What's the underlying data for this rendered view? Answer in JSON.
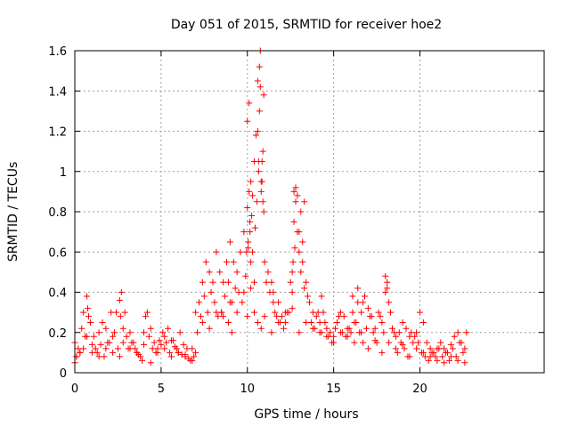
{
  "chart_data": {
    "type": "scatter",
    "title": "Day 051 of 2015, SRMTID for receiver hoe2",
    "xlabel": "GPS time / hours",
    "ylabel": "SRMTID / TECUs",
    "xlim": [
      0,
      27.2
    ],
    "ylim": [
      0,
      1.6
    ],
    "xticks": [
      0,
      5,
      10,
      15,
      20
    ],
    "xtick_labels": [
      "0",
      "5",
      "10",
      "15",
      "20"
    ],
    "yticks": [
      0,
      0.2,
      0.4,
      0.6,
      0.8,
      1,
      1.2,
      1.4,
      1.6
    ],
    "ytick_labels": [
      "0",
      "0.2",
      "0.4",
      "0.6",
      "0.8",
      "1",
      "1.2",
      "1.4",
      "1.6"
    ],
    "grid": true,
    "marker": "plus",
    "color": "#ff0000",
    "series": [
      {
        "name": "SRMTID",
        "x": [
          0.0,
          0.2,
          0.4,
          0.5,
          0.7,
          0.8,
          1.0,
          1.2,
          1.4,
          1.6,
          1.8,
          2.0,
          2.2,
          2.4,
          2.6,
          2.7,
          2.8,
          3.0,
          3.2,
          3.4,
          3.6,
          3.7,
          3.8,
          4.0,
          4.2,
          4.4,
          4.6,
          4.8,
          5.0,
          5.2,
          5.4,
          5.6,
          5.8,
          6.0,
          6.2,
          6.4,
          6.6,
          6.8,
          7.0,
          7.2,
          7.4,
          7.6,
          7.8,
          8.0,
          8.2,
          8.4,
          8.6,
          8.8,
          9.0,
          9.2,
          9.4,
          9.6,
          9.8,
          10.0,
          10.1,
          10.2,
          10.4,
          10.5,
          10.6,
          10.7,
          10.8,
          10.9,
          11.0,
          11.2,
          11.4,
          11.6,
          11.8,
          12.0,
          12.2,
          12.4,
          12.6,
          12.7,
          12.8,
          13.0,
          13.2,
          13.4,
          13.6,
          13.8,
          14.0,
          14.2,
          14.4,
          14.6,
          14.8,
          15.0,
          15.2,
          15.4,
          15.6,
          15.8,
          16.0,
          16.2,
          16.4,
          16.6,
          16.8,
          17.0,
          17.2,
          17.4,
          17.6,
          17.8,
          18.0,
          18.2,
          18.4,
          18.6,
          18.8,
          19.0,
          19.2,
          19.4,
          19.6,
          19.8,
          20.0,
          20.2,
          20.4,
          20.6,
          20.8,
          21.0,
          21.2,
          21.4,
          21.6,
          21.8,
          22.0,
          22.2,
          22.4,
          22.6,
          0.1,
          0.3,
          0.6,
          0.75,
          0.9,
          1.1,
          1.3,
          1.5,
          1.7,
          1.9,
          2.1,
          2.3,
          2.5,
          2.65,
          2.9,
          3.1,
          3.3,
          3.5,
          3.9,
          4.1,
          4.3,
          4.5,
          4.7,
          4.9,
          5.1,
          5.3,
          5.5,
          5.7,
          5.9,
          6.1,
          6.3,
          6.5,
          6.7,
          6.9,
          7.1,
          7.3,
          7.5,
          7.7,
          7.9,
          8.1,
          8.3,
          8.5,
          8.7,
          8.9,
          9.1,
          9.3,
          9.5,
          9.7,
          9.9,
          10.05,
          10.15,
          10.3,
          10.45,
          10.55,
          10.65,
          10.75,
          10.85,
          10.95,
          11.1,
          11.3,
          11.5,
          11.7,
          11.9,
          12.1,
          12.3,
          12.5,
          12.65,
          12.75,
          12.9,
          13.1,
          13.3,
          13.5,
          13.7,
          13.9,
          14.1,
          14.3,
          14.5,
          14.7,
          14.9,
          15.1,
          15.3,
          15.5,
          15.7,
          15.9,
          16.1,
          16.3,
          16.5,
          16.7,
          16.9,
          17.1,
          17.3,
          17.5,
          17.7,
          17.9,
          18.1,
          18.3,
          18.5,
          18.7,
          18.9,
          19.1,
          19.3,
          19.5,
          19.7,
          19.9,
          20.1,
          20.3,
          20.5,
          20.7,
          20.9,
          21.1,
          21.3,
          21.5,
          21.7,
          21.9,
          22.1,
          22.3,
          22.5,
          22.7,
          0.0,
          0.1,
          0.3,
          0.5,
          0.7,
          1.0,
          1.4,
          1.8,
          2.2,
          2.6,
          2.8,
          3.2,
          3.6,
          4.0,
          4.4,
          4.8,
          5.2,
          5.6,
          6.0,
          6.4,
          6.8,
          7.0,
          7.4,
          7.8,
          8.2,
          8.6,
          9.0,
          9.4,
          9.8,
          10.0,
          10.2,
          10.4,
          10.6,
          10.8,
          11.0,
          11.4,
          11.8,
          12.2,
          12.6,
          13.0,
          13.4,
          13.8,
          14.2,
          14.6,
          15.0,
          15.4,
          15.8,
          16.2,
          16.6,
          17.0,
          17.4,
          17.8,
          18.2,
          18.6,
          19.0,
          19.4,
          19.8,
          20.2,
          20.6,
          21.0,
          21.4,
          21.8,
          22.2,
          22.6,
          10.0,
          10.1,
          10.2,
          10.3,
          10.4,
          10.6,
          10.7,
          10.8,
          10.9,
          10.95,
          10.75,
          10.85,
          10.65,
          10.25,
          10.15,
          10.05,
          9.95,
          12.7,
          12.8,
          12.9,
          13.0,
          13.1,
          13.3,
          12.6,
          13.2,
          18.0,
          18.1,
          16.1,
          16.4,
          16.7,
          14.3,
          11.5,
          8.9,
          9.1,
          8.5
        ],
        "y": [
          0.15,
          0.12,
          0.22,
          0.3,
          0.38,
          0.28,
          0.14,
          0.12,
          0.2,
          0.25,
          0.22,
          0.15,
          0.18,
          0.3,
          0.36,
          0.4,
          0.22,
          0.18,
          0.2,
          0.15,
          0.1,
          0.09,
          0.08,
          0.2,
          0.3,
          0.22,
          0.15,
          0.12,
          0.14,
          0.18,
          0.22,
          0.16,
          0.13,
          0.1,
          0.09,
          0.08,
          0.07,
          0.12,
          0.3,
          0.35,
          0.45,
          0.55,
          0.5,
          0.45,
          0.6,
          0.5,
          0.45,
          0.55,
          0.65,
          0.55,
          0.5,
          0.6,
          0.7,
          0.82,
          0.9,
          0.95,
          1.05,
          1.18,
          1.45,
          1.3,
          0.95,
          0.85,
          0.55,
          0.5,
          0.45,
          0.3,
          0.35,
          0.28,
          0.25,
          0.3,
          0.4,
          0.75,
          0.85,
          0.6,
          0.55,
          0.45,
          0.35,
          0.3,
          0.28,
          0.25,
          0.3,
          0.22,
          0.2,
          0.18,
          0.25,
          0.3,
          0.28,
          0.22,
          0.2,
          0.25,
          0.35,
          0.3,
          0.38,
          0.32,
          0.28,
          0.22,
          0.3,
          0.25,
          0.4,
          0.35,
          0.22,
          0.18,
          0.2,
          0.25,
          0.22,
          0.18,
          0.15,
          0.2,
          0.3,
          0.25,
          0.15,
          0.12,
          0.1,
          0.12,
          0.15,
          0.12,
          0.1,
          0.14,
          0.18,
          0.2,
          0.15,
          0.12,
          0.08,
          0.1,
          0.18,
          0.32,
          0.25,
          0.18,
          0.1,
          0.14,
          0.08,
          0.15,
          0.3,
          0.2,
          0.12,
          0.28,
          0.3,
          0.12,
          0.15,
          0.12,
          0.06,
          0.28,
          0.18,
          0.12,
          0.1,
          0.16,
          0.2,
          0.15,
          0.1,
          0.16,
          0.12,
          0.2,
          0.14,
          0.12,
          0.06,
          0.08,
          0.2,
          0.28,
          0.38,
          0.3,
          0.4,
          0.35,
          0.28,
          0.3,
          0.38,
          0.45,
          0.35,
          0.42,
          0.4,
          0.35,
          0.48,
          0.62,
          0.7,
          0.88,
          0.72,
          0.85,
          1.0,
          1.6,
          1.05,
          0.8,
          0.45,
          0.4,
          0.35,
          0.28,
          0.25,
          0.22,
          0.3,
          0.45,
          0.55,
          0.62,
          0.7,
          0.5,
          0.42,
          0.38,
          0.25,
          0.22,
          0.3,
          0.2,
          0.25,
          0.18,
          0.15,
          0.22,
          0.28,
          0.2,
          0.18,
          0.22,
          0.3,
          0.25,
          0.2,
          0.15,
          0.22,
          0.28,
          0.2,
          0.15,
          0.28,
          0.2,
          0.45,
          0.3,
          0.2,
          0.1,
          0.15,
          0.12,
          0.08,
          0.2,
          0.18,
          0.15,
          0.1,
          0.08,
          0.06,
          0.1,
          0.08,
          0.12,
          0.08,
          0.1,
          0.06,
          0.12,
          0.08,
          0.15,
          0.1,
          0.2,
          0.05,
          0.08,
          0.1,
          0.12,
          0.18,
          0.1,
          0.08,
          0.12,
          0.1,
          0.08,
          0.15,
          0.12,
          0.1,
          0.14,
          0.05,
          0.1,
          0.12,
          0.08,
          0.1,
          0.09,
          0.06,
          0.1,
          0.25,
          0.22,
          0.3,
          0.28,
          0.35,
          0.3,
          0.4,
          0.28,
          0.42,
          0.3,
          0.25,
          0.22,
          0.28,
          0.2,
          0.25,
          0.3,
          0.32,
          0.2,
          0.25,
          0.22,
          0.2,
          0.18,
          0.15,
          0.2,
          0.18,
          0.15,
          0.2,
          0.12,
          0.16,
          0.1,
          0.15,
          0.12,
          0.14,
          0.08,
          0.12,
          0.1,
          0.08,
          0.06,
          0.05,
          0.08,
          0.06,
          0.05,
          1.25,
          1.34,
          0.55,
          0.6,
          0.45,
          1.2,
          1.52,
          0.9,
          1.1,
          1.38,
          1.42,
          0.95,
          1.05,
          0.78,
          0.75,
          0.65,
          0.6,
          0.9,
          0.92,
          0.88,
          0.7,
          0.8,
          0.85,
          0.5,
          0.65,
          0.48,
          0.42,
          0.38,
          0.42,
          0.35,
          0.38,
          0.4,
          0.25,
          0.2,
          0.3
        ]
      }
    ]
  }
}
